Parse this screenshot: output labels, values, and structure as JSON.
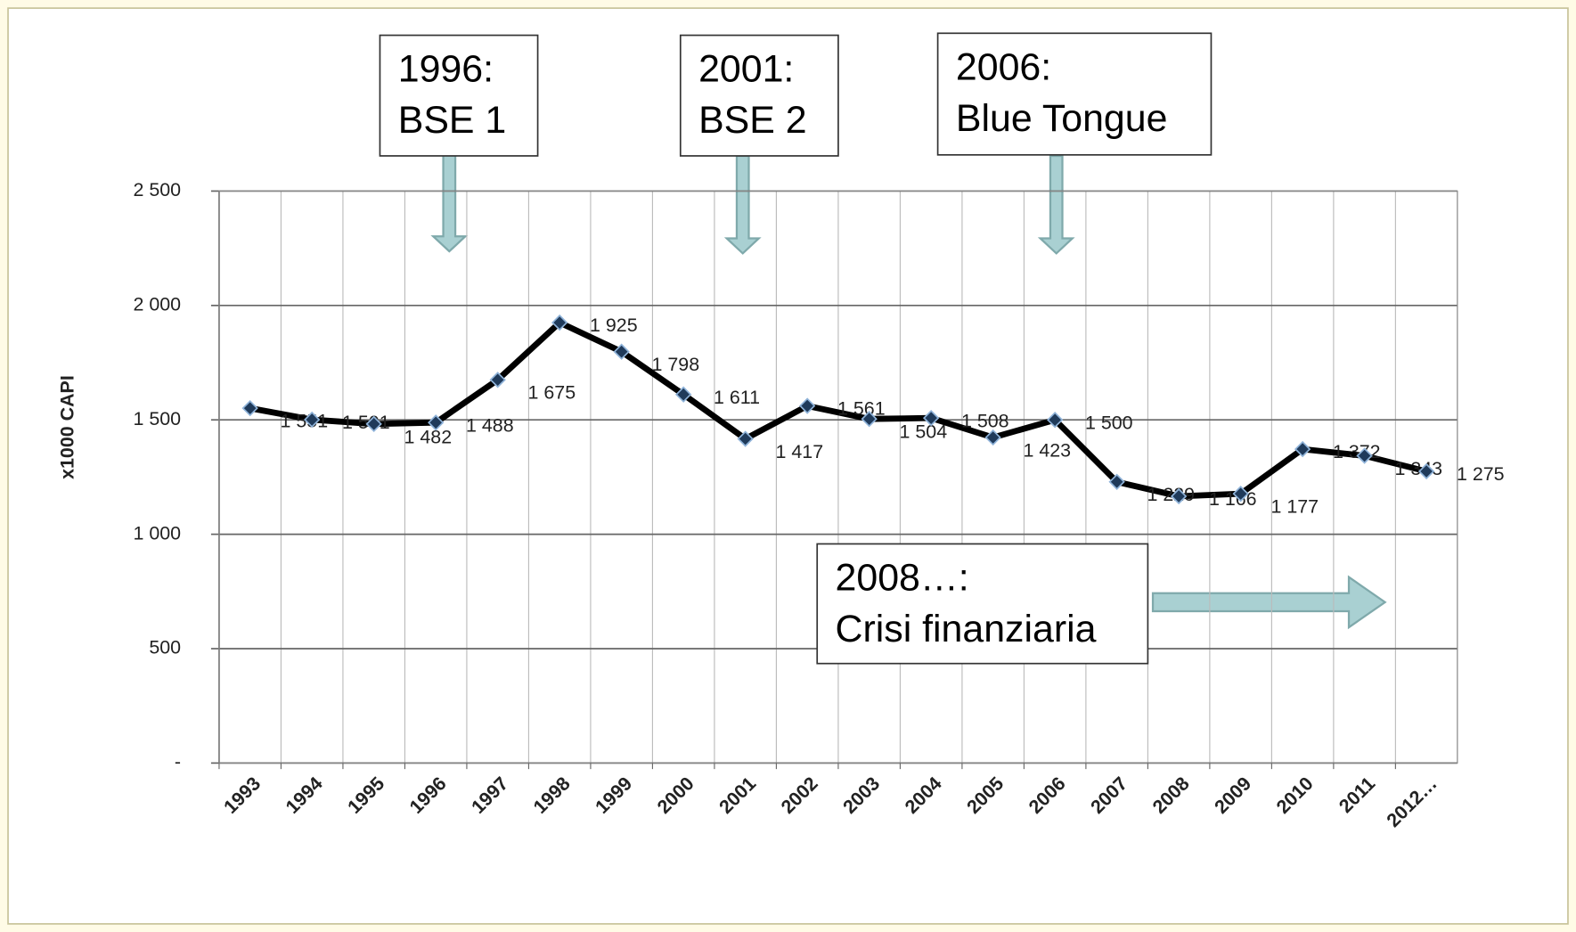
{
  "chart_data": {
    "type": "line",
    "y_label": "x1000 CAPI",
    "categories": [
      "1993",
      "1994",
      "1995",
      "1996",
      "1997",
      "1998",
      "1999",
      "2000",
      "2001",
      "2002",
      "2003",
      "2004",
      "2005",
      "2006",
      "2007",
      "2008",
      "2009",
      "2010",
      "2011",
      "2012…"
    ],
    "series": [
      {
        "name": null,
        "color": "#000000",
        "values": [
          1551,
          1501,
          1482,
          1488,
          1675,
          1925,
          1798,
          1611,
          1417,
          1561,
          1504,
          1508,
          1423,
          1500,
          1229,
          1166,
          1177,
          1372,
          1343,
          1275
        ],
        "value_labels": [
          "1 551",
          "1 501",
          "1 482",
          "1 488",
          "1 675",
          "1 925",
          "1 798",
          "1 611",
          "1 417",
          "1 561",
          "1 504",
          "1 508",
          "1 423",
          "1 500",
          "1 229",
          "1 166",
          "1 177",
          "1 372",
          "1 343",
          "1 275"
        ]
      }
    ],
    "ylim": [
      0,
      2500
    ],
    "yticks": [
      {
        "value": 0,
        "label": "-"
      },
      500,
      {
        "value": 1000,
        "label": "1 000"
      },
      {
        "value": 1500,
        "label": "1 500"
      },
      {
        "value": 2000,
        "label": "2 000"
      },
      {
        "value": 2500,
        "label": "2 500"
      }
    ],
    "grid": true,
    "annotations": [
      {
        "lines": [
          "1996:",
          "BSE 1"
        ]
      },
      {
        "lines": [
          "2001:",
          "BSE 2"
        ]
      },
      {
        "lines": [
          "2006:",
          "Blue Tongue"
        ]
      },
      {
        "lines": [
          "2008…:",
          "Crisi finanziaria"
        ]
      }
    ]
  }
}
